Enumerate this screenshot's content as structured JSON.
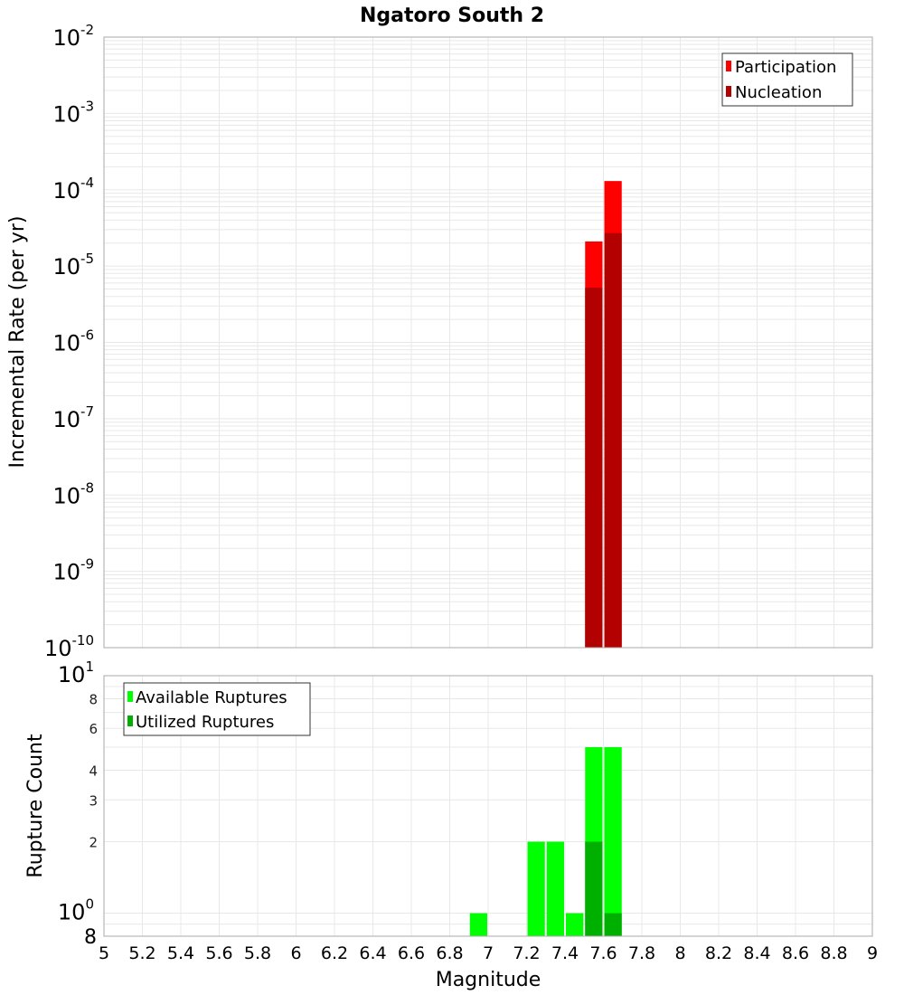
{
  "title": "Ngatoro South 2",
  "colors": {
    "participation": "#ff0000",
    "nucleation": "#b30000",
    "available": "#00ff00",
    "utilized": "#00b000",
    "grid": "#e8e8e8",
    "frame": "#aaaaaa"
  },
  "top_plot": {
    "ylabel": "Incremental Rate (per yr)",
    "legend": [
      "Participation",
      "Nucleation"
    ]
  },
  "bottom_plot": {
    "ylabel": "Rupture Count",
    "legend": [
      "Available Ruptures",
      "Utilized Ruptures"
    ]
  },
  "xlabel": "Magnitude",
  "x_ticks": [
    "5",
    "5.2",
    "5.4",
    "5.6",
    "5.8",
    "6",
    "6.2",
    "6.4",
    "6.6",
    "6.8",
    "7",
    "7.2",
    "7.4",
    "7.6",
    "7.8",
    "8",
    "8.2",
    "8.4",
    "8.6",
    "8.8",
    "9"
  ],
  "top_y_ticks": [
    {
      "base": "10",
      "exp": "-2"
    },
    {
      "base": "10",
      "exp": "-3"
    },
    {
      "base": "10",
      "exp": "-4"
    },
    {
      "base": "10",
      "exp": "-5"
    },
    {
      "base": "10",
      "exp": "-6"
    },
    {
      "base": "10",
      "exp": "-7"
    },
    {
      "base": "10",
      "exp": "-8"
    },
    {
      "base": "10",
      "exp": "-9"
    },
    {
      "base": "10",
      "exp": "-10"
    }
  ],
  "bottom_y_ticks": [
    {
      "label": "10",
      "exp": "1",
      "value": 10
    },
    {
      "label": "8",
      "value": 8
    },
    {
      "label": "6",
      "value": 6
    },
    {
      "label": "4",
      "value": 4
    },
    {
      "label": "3",
      "value": 3
    },
    {
      "label": "2",
      "value": 2
    },
    {
      "label": "10",
      "exp": "0",
      "value": 1
    },
    {
      "label": "8",
      "value": 0.8
    }
  ],
  "chart_data": [
    {
      "type": "bar",
      "title": "Ngatoro South 2",
      "xlabel": "Magnitude",
      "ylabel": "Incremental Rate (per yr)",
      "yscale": "log",
      "xlim": [
        5,
        9
      ],
      "ylim": [
        1e-10,
        0.01
      ],
      "grid": true,
      "legend_position": "top-right",
      "x": [
        7.55,
        7.65
      ],
      "series": [
        {
          "name": "Participation",
          "color": "#ff0000",
          "values": [
            2.1e-05,
            0.00013
          ]
        },
        {
          "name": "Nucleation",
          "color": "#b30000",
          "values": [
            5.2e-06,
            2.7e-05
          ]
        }
      ]
    },
    {
      "type": "bar",
      "xlabel": "Magnitude",
      "ylabel": "Rupture Count",
      "yscale": "log",
      "xlim": [
        5,
        9
      ],
      "ylim": [
        0.8,
        10
      ],
      "grid": true,
      "legend_position": "top-left",
      "x": [
        6.95,
        7.25,
        7.35,
        7.45,
        7.55,
        7.65
      ],
      "series": [
        {
          "name": "Available Ruptures",
          "color": "#00ff00",
          "values": [
            1,
            2,
            2,
            1,
            5,
            5
          ]
        },
        {
          "name": "Utilized Ruptures",
          "color": "#00b000",
          "values": [
            0,
            0,
            0,
            0,
            2,
            1
          ]
        }
      ]
    }
  ]
}
